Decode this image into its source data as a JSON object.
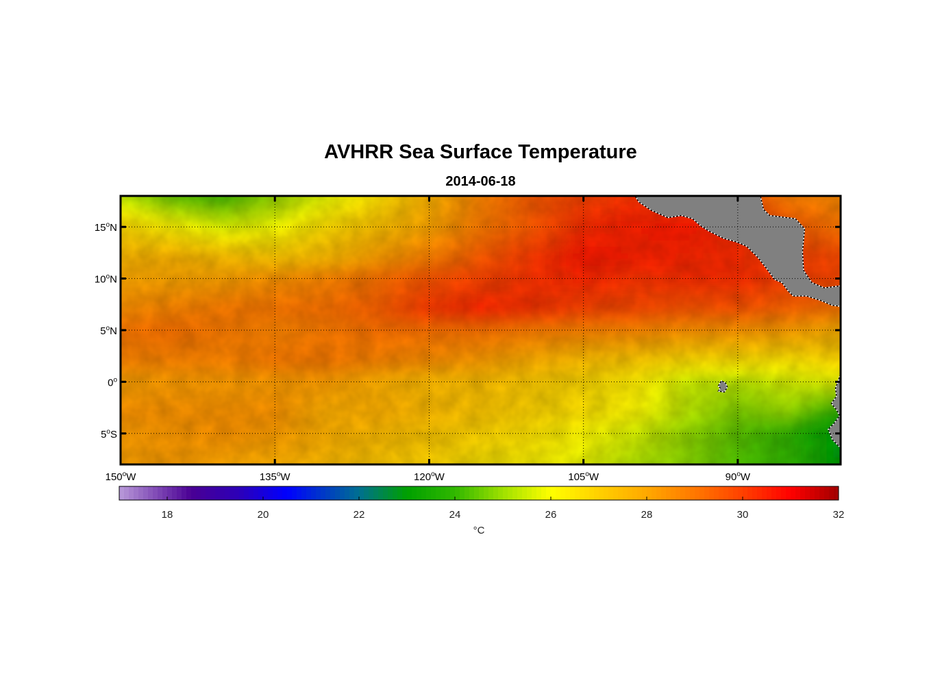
{
  "chart_data": {
    "type": "heatmap",
    "title": "AVHRR Sea Surface Temperature",
    "subtitle": "2014-06-18",
    "projection": "equirectangular",
    "lon_range": [
      -150,
      -80
    ],
    "lat_range": [
      -8,
      18
    ],
    "lon_ticks": [
      {
        "value": -150,
        "label": "150",
        "suffix": "W"
      },
      {
        "value": -135,
        "label": "135",
        "suffix": "W"
      },
      {
        "value": -120,
        "label": "120",
        "suffix": "W"
      },
      {
        "value": -105,
        "label": "105",
        "suffix": "W"
      },
      {
        "value": -90,
        "label": "90",
        "suffix": "W"
      }
    ],
    "lat_ticks": [
      {
        "value": 15,
        "label": "15",
        "suffix": "N"
      },
      {
        "value": 10,
        "label": "10",
        "suffix": "N"
      },
      {
        "value": 5,
        "label": "5",
        "suffix": "N"
      },
      {
        "value": 0,
        "label": "0",
        "suffix": ""
      },
      {
        "value": -5,
        "label": "5",
        "suffix": "S"
      }
    ],
    "grid": true,
    "land_color": "#808080",
    "colorbar": {
      "range": [
        17,
        32
      ],
      "ticks": [
        18,
        20,
        22,
        24,
        26,
        28,
        30,
        32
      ],
      "label": "°C",
      "placement": "bottom",
      "colormap": [
        [
          17,
          "#b99ad9"
        ],
        [
          18.5,
          "#4a0094"
        ],
        [
          19.5,
          "#2c00b8"
        ],
        [
          20.5,
          "#0000ff"
        ],
        [
          22,
          "#007090"
        ],
        [
          23,
          "#00a000"
        ],
        [
          24,
          "#30b800"
        ],
        [
          25,
          "#a0e000"
        ],
        [
          26,
          "#ffff00"
        ],
        [
          27,
          "#ffd000"
        ],
        [
          28,
          "#ffa800"
        ],
        [
          29,
          "#ff7800"
        ],
        [
          30,
          "#ff4000"
        ],
        [
          31,
          "#ff0000"
        ],
        [
          32,
          "#a00000"
        ]
      ]
    },
    "sst_grid": {
      "lons": [
        -150,
        -145,
        -140,
        -135,
        -130,
        -125,
        -120,
        -115,
        -110,
        -105,
        -100,
        -95,
        -90,
        -85,
        -80
      ],
      "lats": [
        18,
        15,
        12,
        10,
        7,
        5,
        2,
        0,
        -3,
        -5,
        -8
      ],
      "values": [
        [
          25.3,
          24.4,
          24.1,
          24.9,
          25.7,
          26.6,
          27.7,
          28.7,
          29.5,
          29.9,
          30.2,
          29.9,
          29.7,
          28.8,
          28.6
        ],
        [
          26.8,
          26.2,
          25.6,
          25.9,
          26.7,
          27.3,
          28.0,
          28.9,
          29.5,
          30.3,
          30.5,
          30.6,
          30.3,
          29.5,
          29.0
        ],
        [
          27.6,
          27.7,
          27.4,
          27.2,
          27.5,
          28.2,
          28.8,
          29.5,
          30.1,
          30.6,
          30.5,
          30.4,
          30.3,
          30.0,
          29.8
        ],
        [
          28.0,
          28.0,
          28.1,
          28.4,
          28.7,
          29.1,
          29.6,
          29.9,
          30.2,
          30.4,
          30.2,
          30.3,
          30.3,
          30.0,
          29.9
        ],
        [
          28.5,
          28.7,
          28.9,
          29.0,
          29.1,
          29.4,
          30.1,
          30.4,
          30.2,
          29.9,
          29.8,
          29.6,
          29.6,
          29.3,
          29.0
        ],
        [
          29.0,
          29.1,
          28.9,
          28.7,
          28.9,
          29.1,
          29.1,
          29.1,
          28.9,
          28.8,
          28.7,
          28.5,
          28.4,
          28.2,
          27.8
        ],
        [
          28.7,
          28.7,
          28.7,
          28.9,
          28.9,
          28.7,
          28.5,
          28.2,
          27.8,
          27.4,
          27.1,
          26.7,
          26.6,
          26.5,
          26.8
        ],
        [
          28.1,
          28.2,
          28.2,
          28.2,
          28.2,
          27.8,
          27.5,
          27.4,
          27.1,
          26.8,
          26.4,
          25.5,
          25.3,
          25.6,
          25.8
        ],
        [
          28.4,
          28.4,
          28.4,
          28.4,
          27.8,
          27.8,
          27.5,
          27.2,
          26.9,
          26.6,
          26.1,
          25.3,
          24.7,
          24.9,
          23.9
        ],
        [
          28.2,
          28.3,
          28.4,
          28.2,
          27.8,
          27.5,
          27.2,
          26.9,
          26.6,
          26.1,
          25.6,
          24.9,
          24.4,
          24.0,
          22.8
        ],
        [
          28.1,
          28.2,
          28.0,
          27.8,
          27.5,
          27.2,
          26.9,
          26.5,
          26.2,
          25.8,
          25.2,
          24.8,
          24.3,
          24.0,
          22.9
        ]
      ]
    },
    "land_polygons": [
      {
        "name": "Central America",
        "points": [
          [
            -100,
            18
          ],
          [
            -99.6,
            17.4
          ],
          [
            -98.4,
            16.6
          ],
          [
            -96.8,
            15.9
          ],
          [
            -95.5,
            16.1
          ],
          [
            -94.4,
            15.8
          ],
          [
            -93.6,
            15.1
          ],
          [
            -92.8,
            14.6
          ],
          [
            -91.4,
            13.9
          ],
          [
            -90,
            13.5
          ],
          [
            -89.1,
            13.1
          ],
          [
            -88.0,
            12.0
          ],
          [
            -87.3,
            11.1
          ],
          [
            -86.4,
            9.9
          ],
          [
            -85.7,
            9.6
          ],
          [
            -85.1,
            8.8
          ],
          [
            -84.6,
            8.3
          ],
          [
            -83.3,
            8.3
          ],
          [
            -82.0,
            7.9
          ],
          [
            -80.8,
            7.4
          ],
          [
            -80,
            7.3
          ],
          [
            -80,
            9.3
          ],
          [
            -81.6,
            9.1
          ],
          [
            -82.8,
            9.6
          ],
          [
            -83.6,
            10.8
          ],
          [
            -83.7,
            12.6
          ],
          [
            -83.5,
            14.8
          ],
          [
            -84.4,
            15.8
          ],
          [
            -86.9,
            16.1
          ],
          [
            -87.5,
            16.7
          ],
          [
            -87.8,
            18
          ],
          [
            -100,
            18
          ]
        ]
      },
      {
        "name": "South America",
        "points": [
          [
            -80,
            0.8
          ],
          [
            -80.3,
            -0.1
          ],
          [
            -80.5,
            -0.6
          ],
          [
            -80.4,
            -1.4
          ],
          [
            -80.9,
            -2.1
          ],
          [
            -80.4,
            -2.7
          ],
          [
            -80.1,
            -3.3
          ],
          [
            -80.7,
            -4.1
          ],
          [
            -81.2,
            -4.6
          ],
          [
            -80.8,
            -5.6
          ],
          [
            -80,
            -6.4
          ],
          [
            -80,
            0.8
          ]
        ]
      },
      {
        "name": "Galapagos Islands",
        "points": [
          [
            -91.6,
            0.1
          ],
          [
            -91.2,
            -0.1
          ],
          [
            -91.0,
            -0.5
          ],
          [
            -91.3,
            -1.0
          ],
          [
            -91.9,
            -0.9
          ],
          [
            -91.7,
            -0.6
          ],
          [
            -91.9,
            -0.4
          ],
          [
            -91.6,
            0.1
          ]
        ]
      }
    ]
  }
}
